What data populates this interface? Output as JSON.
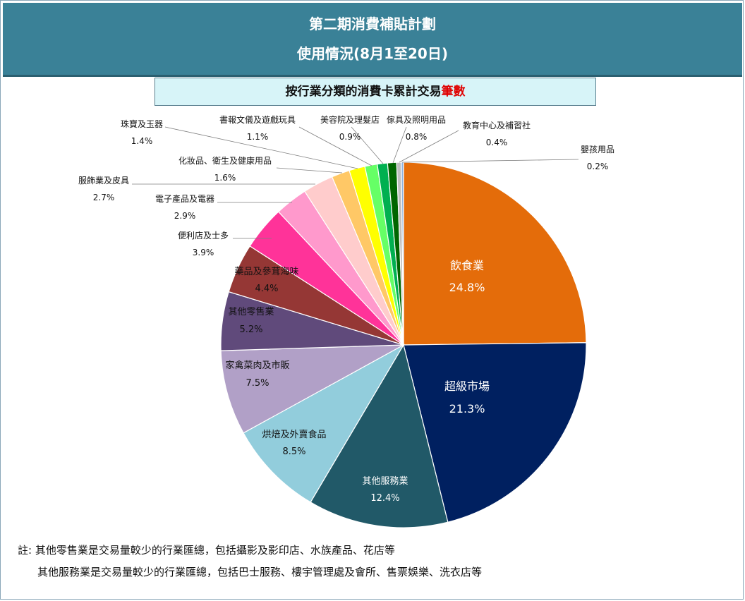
{
  "header": {
    "title_line1": "第二期消費補貼計劃",
    "title_line2": "使用情況(8月1至20日)"
  },
  "subtitle": {
    "text_main": "按行業分類的消費卡累計交易",
    "text_highlight": "筆數"
  },
  "notes": {
    "line1": "註: 其他零售業是交易量較少的行業匯總，包括攝影及影印店、水族產品、花店等",
    "line2": "其他服務業是交易量較少的行業匯總，包括巴士服務、樓宇管理處及會所、售票娛樂、洗衣店等"
  },
  "chart_data": {
    "type": "pie",
    "title": "按行業分類的消費卡累計交易筆數",
    "unit": "%",
    "slices": [
      {
        "label": "飲食業",
        "value": 24.8,
        "display": "24.8%",
        "color": "#e46c0a"
      },
      {
        "label": "超級市場",
        "value": 21.3,
        "display": "21.3%",
        "color": "#002060"
      },
      {
        "label": "其他服務業",
        "value": 12.4,
        "display": "12.4%",
        "color": "#215968"
      },
      {
        "label": "烘焙及外賣食品",
        "value": 8.5,
        "display": "8.5%",
        "color": "#92cddc"
      },
      {
        "label": "家禽菜肉及市販",
        "value": 7.5,
        "display": "7.5%",
        "color": "#b1a0c7"
      },
      {
        "label": "其他零售業",
        "value": 5.2,
        "display": "5.2%",
        "color": "#604a7b"
      },
      {
        "label": "藥品及參茸海味",
        "value": 4.4,
        "display": "4.4%",
        "color": "#953735"
      },
      {
        "label": "便利店及士多",
        "value": 3.9,
        "display": "3.9%",
        "color": "#ff3399"
      },
      {
        "label": "電子產品及電器",
        "value": 2.9,
        "display": "2.9%",
        "color": "#ff99cc"
      },
      {
        "label": "服飾業及皮具",
        "value": 2.7,
        "display": "2.7%",
        "color": "#ffcccc"
      },
      {
        "label": "化妝品、衛生及健康用品",
        "value": 1.6,
        "display": "1.6%",
        "color": "#ffc866"
      },
      {
        "label": "珠寶及玉器",
        "value": 1.4,
        "display": "1.4%",
        "color": "#ffff00"
      },
      {
        "label": "書報文儀及遊戲玩具",
        "value": 1.1,
        "display": "1.1%",
        "color": "#66ff66"
      },
      {
        "label": "美容院及理髮店",
        "value": 0.9,
        "display": "0.9%",
        "color": "#00b050"
      },
      {
        "label": "傢具及照明用品",
        "value": 0.8,
        "display": "0.8%",
        "color": "#006600"
      },
      {
        "label": "教育中心及補習社",
        "value": 0.4,
        "display": "0.4%",
        "color": "#bfbfbf"
      },
      {
        "label": "嬰孩用品",
        "value": 0.2,
        "display": "0.2%",
        "color": "#8db3e2"
      }
    ]
  }
}
